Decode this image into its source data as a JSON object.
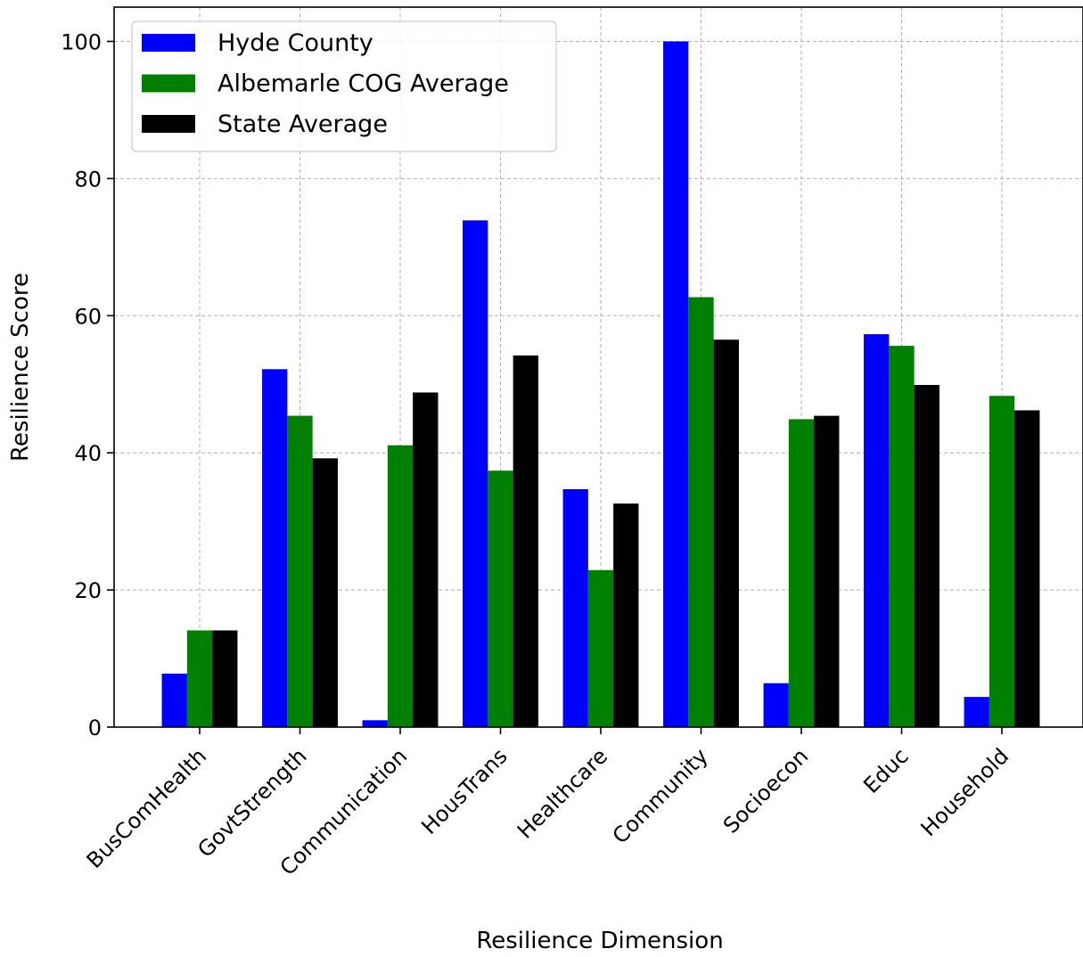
{
  "chart_data": {
    "type": "bar",
    "title": "",
    "xlabel": "Resilience Dimension",
    "ylabel": "Resilience Score",
    "categories": [
      "BusComHealth",
      "GovtStrength",
      "Communication",
      "HousTrans",
      "Healthcare",
      "Community",
      "Socioecon",
      "Educ",
      "Household"
    ],
    "series": [
      {
        "name": "Hyde County",
        "color": "#0000ff",
        "values": [
          7.8,
          52.2,
          1.0,
          73.9,
          34.7,
          100.0,
          6.4,
          57.3,
          4.4
        ]
      },
      {
        "name": "Albemarle COG Average",
        "color": "#008000",
        "values": [
          14.1,
          45.4,
          41.1,
          37.4,
          22.9,
          62.7,
          44.9,
          55.6,
          48.3
        ]
      },
      {
        "name": "State Average",
        "color": "#000000",
        "values": [
          14.1,
          39.2,
          48.8,
          54.2,
          32.6,
          56.5,
          45.4,
          49.9,
          46.2
        ]
      }
    ],
    "ylim": [
      0,
      105
    ],
    "yticks": [
      0,
      20,
      40,
      60,
      80,
      100
    ],
    "grid": true,
    "legend_position": "top-left"
  }
}
